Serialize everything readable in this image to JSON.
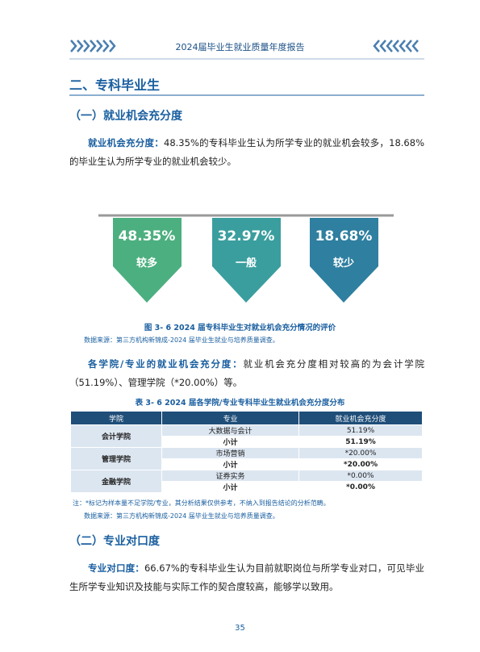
{
  "header": {
    "title": "2024届毕业生就业质量年度报告"
  },
  "section": {
    "title": "二、专科毕业生"
  },
  "subsections": [
    {
      "title": "（一）就业机会充分度",
      "paragraph1": {
        "lead": "就业机会充分度：",
        "text": "48.35%的专科毕业生认为所学专业的就业机会较多，18.68%的毕业生认为所学专业的就业机会较少。"
      },
      "badges": [
        {
          "value": "48.35%",
          "label": "较多"
        },
        {
          "value": "32.97%",
          "label": "一般"
        },
        {
          "value": "18.68%",
          "label": "较少"
        }
      ],
      "figure_caption": "图 3- 6  2024 届专科毕业生对就业机会充分情况的评价",
      "figure_source": "数据来源：第三方机构新锦成-2024 届毕业生就业与培养质量调查。",
      "paragraph2": {
        "lead": "各学院/专业的就业机会充分度：",
        "text": "就业机会充分度相对较高的为会计学院（51.19%）、管理学院（*20.00%）等。"
      },
      "table_caption": "表 3- 6  2024 届各学院/专业专科毕业生就业机会充分度分布",
      "table": {
        "header": [
          "学院",
          "专业",
          "就业机会充分度"
        ],
        "groups": [
          {
            "college": "会计学院",
            "rows": [
              [
                "大数据与会计",
                "51.19%"
              ],
              [
                "小计",
                "51.19%"
              ]
            ]
          },
          {
            "college": "管理学院",
            "rows": [
              [
                "市场营销",
                "*20.00%"
              ],
              [
                "小计",
                "*20.00%"
              ]
            ]
          },
          {
            "college": "金融学院",
            "rows": [
              [
                "证券实务",
                "*0.00%"
              ],
              [
                "小计",
                "*0.00%"
              ]
            ]
          }
        ]
      },
      "table_note": "注：*标记为样本量不足学院/专业，其分析结果仅供参考，不纳入到报告结论的分析范畴。",
      "table_source": "数据来源：第三方机构新锦成-2024 届毕业生就业与培养质量调查。"
    },
    {
      "title": "（二）专业对口度",
      "paragraph1": {
        "lead": "专业对口度：",
        "text": "66.67%的专科毕业生认为目前就职岗位与所学专业对口，可见毕业生所学专业知识及技能与实际工作的契合度较高，能够学以致用。"
      }
    }
  ],
  "footer": {
    "page_number": "35"
  }
}
